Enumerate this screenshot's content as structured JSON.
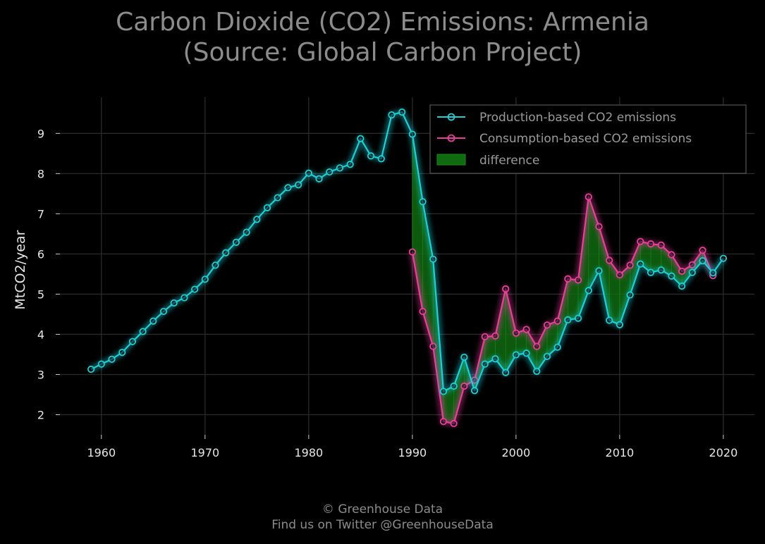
{
  "title": {
    "line1": "Carbon Dioxide (CO2) Emissions: Armenia",
    "line2": "(Source: Global Carbon Project)"
  },
  "footer": {
    "line1": "© Greenhouse Data",
    "line2": "Find us on Twitter @GreenhouseData"
  },
  "colors": {
    "background": "#000000",
    "grid": "#2a2a2a",
    "production": "#1ecfd6",
    "consumption": "#e8409a",
    "difference": "#0f6a10"
  },
  "chart_data": {
    "type": "line",
    "xlabel": "",
    "ylabel": "MtCO2/year",
    "xlim": [
      1956,
      2023
    ],
    "ylim": [
      1.5,
      9.9
    ],
    "xticks": [
      1960,
      1970,
      1980,
      1990,
      2000,
      2010,
      2020
    ],
    "yticks": [
      2,
      3,
      4,
      5,
      6,
      7,
      8,
      9
    ],
    "grid": true,
    "legend_position": "top-right",
    "legend": [
      "Production-based CO2 emissions",
      "Consumption-based CO2 emissions",
      "difference"
    ],
    "series": [
      {
        "name": "Production-based CO2 emissions",
        "x": [
          1959,
          1960,
          1961,
          1962,
          1963,
          1964,
          1965,
          1966,
          1967,
          1968,
          1969,
          1970,
          1971,
          1972,
          1973,
          1974,
          1975,
          1976,
          1977,
          1978,
          1979,
          1980,
          1981,
          1982,
          1983,
          1984,
          1985,
          1986,
          1987,
          1988,
          1989,
          1990,
          1991,
          1992,
          1993,
          1994,
          1995,
          1996,
          1997,
          1998,
          1999,
          2000,
          2001,
          2002,
          2003,
          2004,
          2005,
          2006,
          2007,
          2008,
          2009,
          2010,
          2011,
          2012,
          2013,
          2014,
          2015,
          2016,
          2017,
          2018,
          2019,
          2020
        ],
        "values": [
          3.13,
          3.26,
          3.38,
          3.55,
          3.82,
          4.07,
          4.33,
          4.57,
          4.78,
          4.91,
          5.12,
          5.37,
          5.72,
          6.03,
          6.29,
          6.54,
          6.86,
          7.15,
          7.4,
          7.65,
          7.72,
          8.01,
          7.87,
          8.04,
          8.14,
          8.23,
          8.87,
          8.44,
          8.37,
          9.46,
          9.53,
          8.98,
          7.3,
          5.87,
          2.58,
          2.71,
          3.43,
          2.6,
          3.26,
          3.39,
          3.05,
          3.49,
          3.53,
          3.08,
          3.45,
          3.68,
          4.36,
          4.4,
          5.09,
          5.58,
          4.35,
          4.24,
          4.98,
          5.75,
          5.54,
          5.6,
          5.45,
          5.2,
          5.54,
          5.83,
          5.53,
          5.89
        ]
      },
      {
        "name": "Consumption-based CO2 emissions",
        "x": [
          1990,
          1991,
          1992,
          1993,
          1994,
          1995,
          1996,
          1997,
          1998,
          1999,
          2000,
          2001,
          2002,
          2003,
          2004,
          2005,
          2006,
          2007,
          2008,
          2009,
          2010,
          2011,
          2012,
          2013,
          2014,
          2015,
          2016,
          2017,
          2018,
          2019
        ],
        "values": [
          6.05,
          4.57,
          3.7,
          1.83,
          1.78,
          2.71,
          2.86,
          3.94,
          3.96,
          5.13,
          4.03,
          4.12,
          3.7,
          4.23,
          4.33,
          5.38,
          5.35,
          7.42,
          6.68,
          5.84,
          5.48,
          5.72,
          6.31,
          6.25,
          6.22,
          5.98,
          5.57,
          5.73,
          6.09,
          5.46
        ]
      }
    ]
  }
}
